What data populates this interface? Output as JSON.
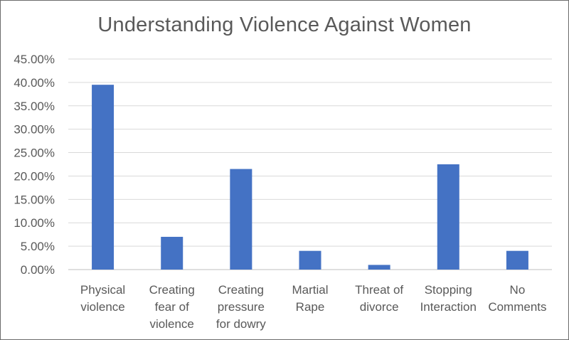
{
  "chart_data": {
    "type": "bar",
    "title": "Understanding Violence Against Women",
    "xlabel": "",
    "ylabel": "",
    "categories": [
      [
        "Physical",
        "violence"
      ],
      [
        "Creating",
        "fear of",
        "violence"
      ],
      [
        "Creating",
        "pressure",
        "for dowry"
      ],
      [
        "Martial",
        "Rape"
      ],
      [
        "Threat of",
        "divorce"
      ],
      [
        "Stopping",
        "Interaction"
      ],
      [
        "No",
        "Comments"
      ]
    ],
    "values": [
      39.5,
      7.0,
      21.5,
      4.0,
      1.0,
      22.5,
      4.0
    ],
    "ylim": [
      0,
      45
    ],
    "yticks": [
      0,
      5,
      10,
      15,
      20,
      25,
      30,
      35,
      40,
      45
    ],
    "ytick_labels": [
      "0.00%",
      "5.00%",
      "10.00%",
      "15.00%",
      "20.00%",
      "25.00%",
      "30.00%",
      "35.00%",
      "40.00%",
      "45.00%"
    ],
    "grid": true,
    "legend": "none",
    "colors": {
      "bar": "#4472C4",
      "grid": "#d9d9d9",
      "axis": "#bfbfbf",
      "text": "#595959"
    }
  }
}
